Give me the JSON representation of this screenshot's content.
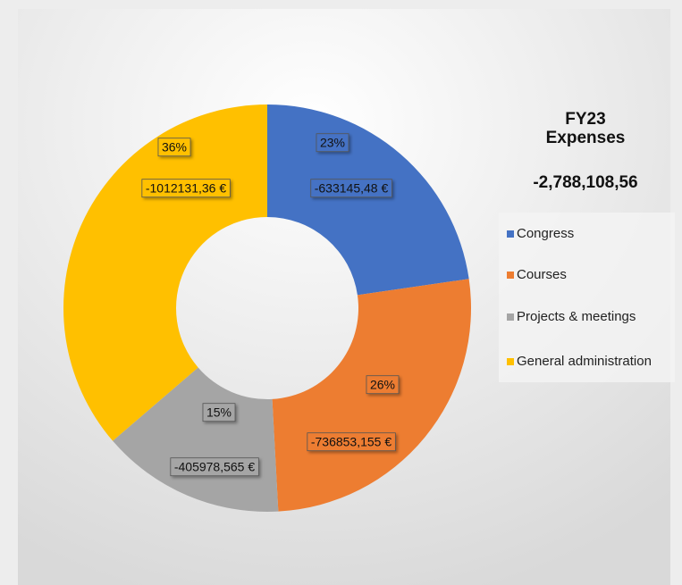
{
  "chart_data": {
    "type": "donut",
    "title": "FY23 Expenses",
    "total_label": "-2,788,108,56",
    "categories": [
      "Congress",
      "Courses",
      "Projects & meetings",
      "General administration"
    ],
    "values": [
      -633145.48,
      -736853.155,
      -405978.565,
      -1012131.36
    ],
    "value_labels": [
      "-633145,48 €",
      "-736853,155 €",
      "-405978,565 €",
      "-1012131,36 €"
    ],
    "percentages": [
      23,
      26,
      15,
      36
    ],
    "percentage_labels": [
      "23%",
      "26%",
      "15%",
      "36%"
    ],
    "colors": [
      "#4472c4",
      "#ed7d31",
      "#a5a5a5",
      "#ffc000"
    ],
    "legend": "right"
  }
}
